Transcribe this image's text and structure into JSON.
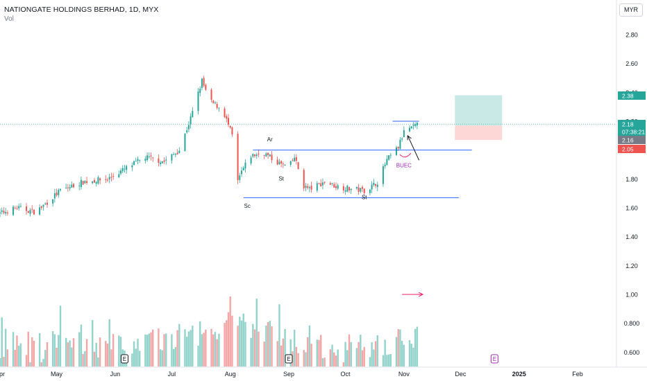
{
  "header": {
    "title": "NATIONGATE HOLDINGS BERHAD, 1D, MYX",
    "indicator": "Vol",
    "currency": "MYR"
  },
  "colors": {
    "up": "#26a69a",
    "down": "#ef5350",
    "up_vol": "#92d3cb",
    "down_vol": "#f4a6a6",
    "line": "#2962ff",
    "target": "#b2dfdb",
    "stop": "#fdd3d0",
    "annot": "#9c27b0"
  },
  "chart_data": {
    "type": "candlestick",
    "x_ticks": [
      "Apr",
      "May",
      "Jun",
      "Jul",
      "Aug",
      "Sep",
      "Oct",
      "Nov",
      "Dec",
      "2025",
      "Feb"
    ],
    "y_ticks": [
      "2.80",
      "2.60",
      "2.40",
      "2.20",
      "2.00",
      "1.80",
      "1.60",
      "1.40",
      "1.20",
      "1.00",
      "0.800",
      "0.600"
    ],
    "ylim": [
      0.5,
      2.85
    ],
    "price_labels": [
      {
        "text": "2.38",
        "value": 2.38,
        "color": "#26a69a"
      },
      {
        "text": "2.18",
        "value": 2.18,
        "color": "#26a69a"
      },
      {
        "text": "07:38:21",
        "value": 2.18,
        "color": "#26a69a"
      },
      {
        "text": "2.16",
        "value": 2.16,
        "color": "#787b86"
      },
      {
        "text": "2.05",
        "value": 2.05,
        "color": "#ef5350"
      }
    ],
    "annotations": [
      {
        "text": "Ar",
        "date": "Aug 22",
        "price": 2.06
      },
      {
        "text": "St",
        "date": "Aug 28",
        "price": 1.79
      },
      {
        "text": "Sc",
        "date": "Aug 10",
        "price": 1.6
      },
      {
        "text": "St",
        "date": "Oct 11",
        "price": 1.66
      },
      {
        "text": "BUEC",
        "date": "Nov 1",
        "price": 1.88
      }
    ],
    "earnings_markers": [
      "Jun 6",
      "Sep 1",
      "Dec 19"
    ],
    "horizontal_levels": [
      {
        "price": 2.2,
        "from": "Oct 26",
        "to": "Nov 9"
      },
      {
        "price": 2.0,
        "from": "Aug 13",
        "to": "Dec 7"
      },
      {
        "price": 1.67,
        "from": "Aug 8",
        "to": "Nov 30"
      }
    ],
    "position_box": {
      "from": "Nov 28",
      "to": "Dec 23",
      "target": 2.38,
      "entry": 2.17,
      "stop": 2.07
    },
    "arrows": [
      {
        "from_date": "Oct 31",
        "from_price": 1.0,
        "to_date": "Nov 11",
        "to_price": 1.0
      },
      {
        "from_date": "Nov 9",
        "from_price": 1.93,
        "to_date": "Nov 3",
        "to_price": 2.1
      }
    ],
    "curve": {
      "date": "Nov 1",
      "price": 1.95
    },
    "series": [
      {
        "anchors": [
          [
            "Mar 27",
            1.54
          ],
          [
            "Apr 10",
            1.6
          ],
          [
            "Apr 20",
            1.57
          ],
          [
            "May 3",
            1.72
          ],
          [
            "May 15",
            1.78
          ],
          [
            "May 28",
            1.8
          ],
          [
            "Jun 5",
            1.86
          ],
          [
            "Jun 17",
            1.95
          ],
          [
            "Jun 27",
            1.92
          ],
          [
            "Jul 5",
            2.0
          ],
          [
            "Jul 11",
            2.22
          ],
          [
            "Jul 17",
            2.48
          ],
          [
            "Jul 21",
            2.34
          ],
          [
            "Jul 28",
            2.28
          ],
          [
            "Aug 2",
            2.1
          ],
          [
            "Aug 5",
            1.78
          ],
          [
            "Aug 7",
            1.85
          ],
          [
            "Aug 12",
            1.96
          ],
          [
            "Aug 19",
            1.98
          ],
          [
            "Aug 25",
            1.92
          ],
          [
            "Sep 1",
            1.88
          ],
          [
            "Sep 4",
            1.95
          ],
          [
            "Sep 9",
            1.75
          ],
          [
            "Sep 12",
            1.73
          ],
          [
            "Sep 20",
            1.78
          ],
          [
            "Sep 26",
            1.75
          ],
          [
            "Oct 4",
            1.73
          ],
          [
            "Oct 12",
            1.72
          ],
          [
            "Oct 18",
            1.78
          ],
          [
            "Oct 23",
            1.93
          ],
          [
            "Oct 29",
            2.02
          ],
          [
            "Nov 2",
            2.16
          ],
          [
            "Nov 5",
            2.15
          ],
          [
            "Nov 9",
            2.18
          ]
        ]
      }
    ],
    "volume_series": [
      {
        "anchors": [
          [
            "Mar 27",
            0.6
          ],
          [
            "May 1",
            0.66
          ],
          [
            "Jun 5",
            0.62
          ],
          [
            "Jul 1",
            0.68
          ],
          [
            "Jul 20",
            0.72
          ],
          [
            "Aug 5",
            0.8
          ],
          [
            "Aug 20",
            0.72
          ],
          [
            "Sep 15",
            0.62
          ],
          [
            "Oct 15",
            0.62
          ],
          [
            "Nov 9",
            0.7
          ]
        ]
      }
    ]
  }
}
